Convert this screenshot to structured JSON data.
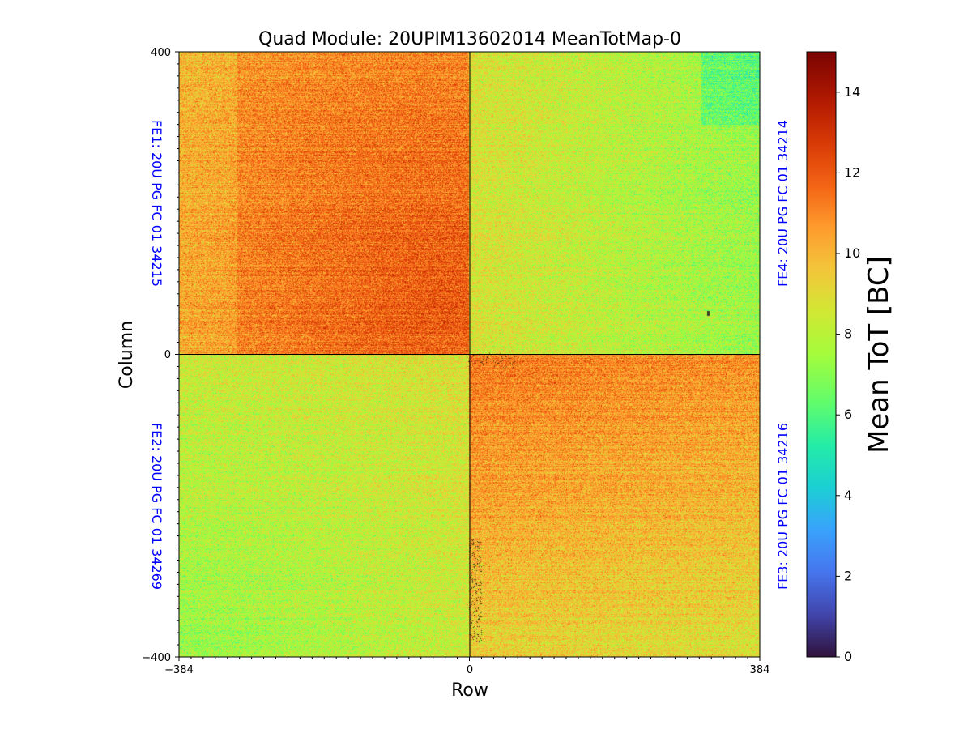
{
  "chart_data": {
    "type": "heatmap",
    "title": "Quad Module: 20UPIM13602014 MeanTotMap-0",
    "xlabel": "Row",
    "ylabel": "Column",
    "xlim": [
      -384,
      384
    ],
    "ylim": [
      -400,
      400
    ],
    "x_ticks": [
      -384,
      0,
      384
    ],
    "y_ticks": [
      -400,
      0,
      400
    ],
    "x_tick_labels": [
      "−384",
      "0",
      "384"
    ],
    "y_tick_labels": [
      "−400",
      "0",
      "400"
    ],
    "colorbar": {
      "label": "Mean ToT [BC]",
      "range": [
        0,
        15
      ],
      "ticks": [
        0,
        2,
        4,
        6,
        8,
        10,
        12,
        14
      ],
      "colormap": "turbo"
    },
    "quadrants": [
      {
        "name": "FE1",
        "label": "FE1: 20U PG FC 01 34215",
        "x_range": [
          -384,
          0
        ],
        "y_range": [
          0,
          400
        ],
        "mean_tot": 10.8,
        "gradient": "hotter toward centre",
        "label_side": "left"
      },
      {
        "name": "FE2",
        "label": "FE2: 20U PG FC 01 34269",
        "x_range": [
          -384,
          0
        ],
        "y_range": [
          -400,
          0
        ],
        "mean_tot": 8.3,
        "gradient": "cooler toward bottom-left",
        "label_side": "left"
      },
      {
        "name": "FE3",
        "label": "FE3: 20U PG FC 01 34216",
        "x_range": [
          0,
          384
        ],
        "y_range": [
          -400,
          0
        ],
        "mean_tot": 10.5,
        "gradient": "hotter toward top",
        "label_side": "right"
      },
      {
        "name": "FE4",
        "label": "FE4: 20U PG FC 01 34214",
        "x_range": [
          0,
          384
        ],
        "y_range": [
          0,
          400
        ],
        "mean_tot": 8.6,
        "gradient": "cooler toward right",
        "label_side": "right"
      }
    ],
    "divider_lines": {
      "x": 0,
      "y": 0,
      "color": "#000000"
    },
    "label_color": "#0000ff"
  }
}
